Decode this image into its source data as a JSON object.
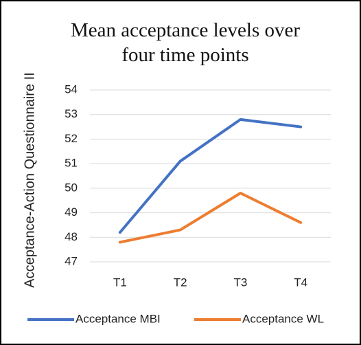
{
  "chart_data": {
    "type": "line",
    "title": "Mean acceptance levels over four time points",
    "y_label": "Acceptance-Action Questionnaire II",
    "categories": [
      "T1",
      "T2",
      "T3",
      "T4"
    ],
    "series": [
      {
        "name": "Acceptance MBI",
        "color": "#4472c4",
        "values": [
          48.2,
          51.1,
          52.8,
          52.5
        ]
      },
      {
        "name": "Acceptance WL",
        "color": "#ed7d31",
        "values": [
          47.8,
          48.3,
          49.8,
          48.6
        ]
      }
    ],
    "ylim": [
      47,
      54
    ],
    "yticks": [
      47,
      48,
      49,
      50,
      51,
      52,
      53,
      54
    ],
    "grid": true,
    "legend": "bottom"
  }
}
